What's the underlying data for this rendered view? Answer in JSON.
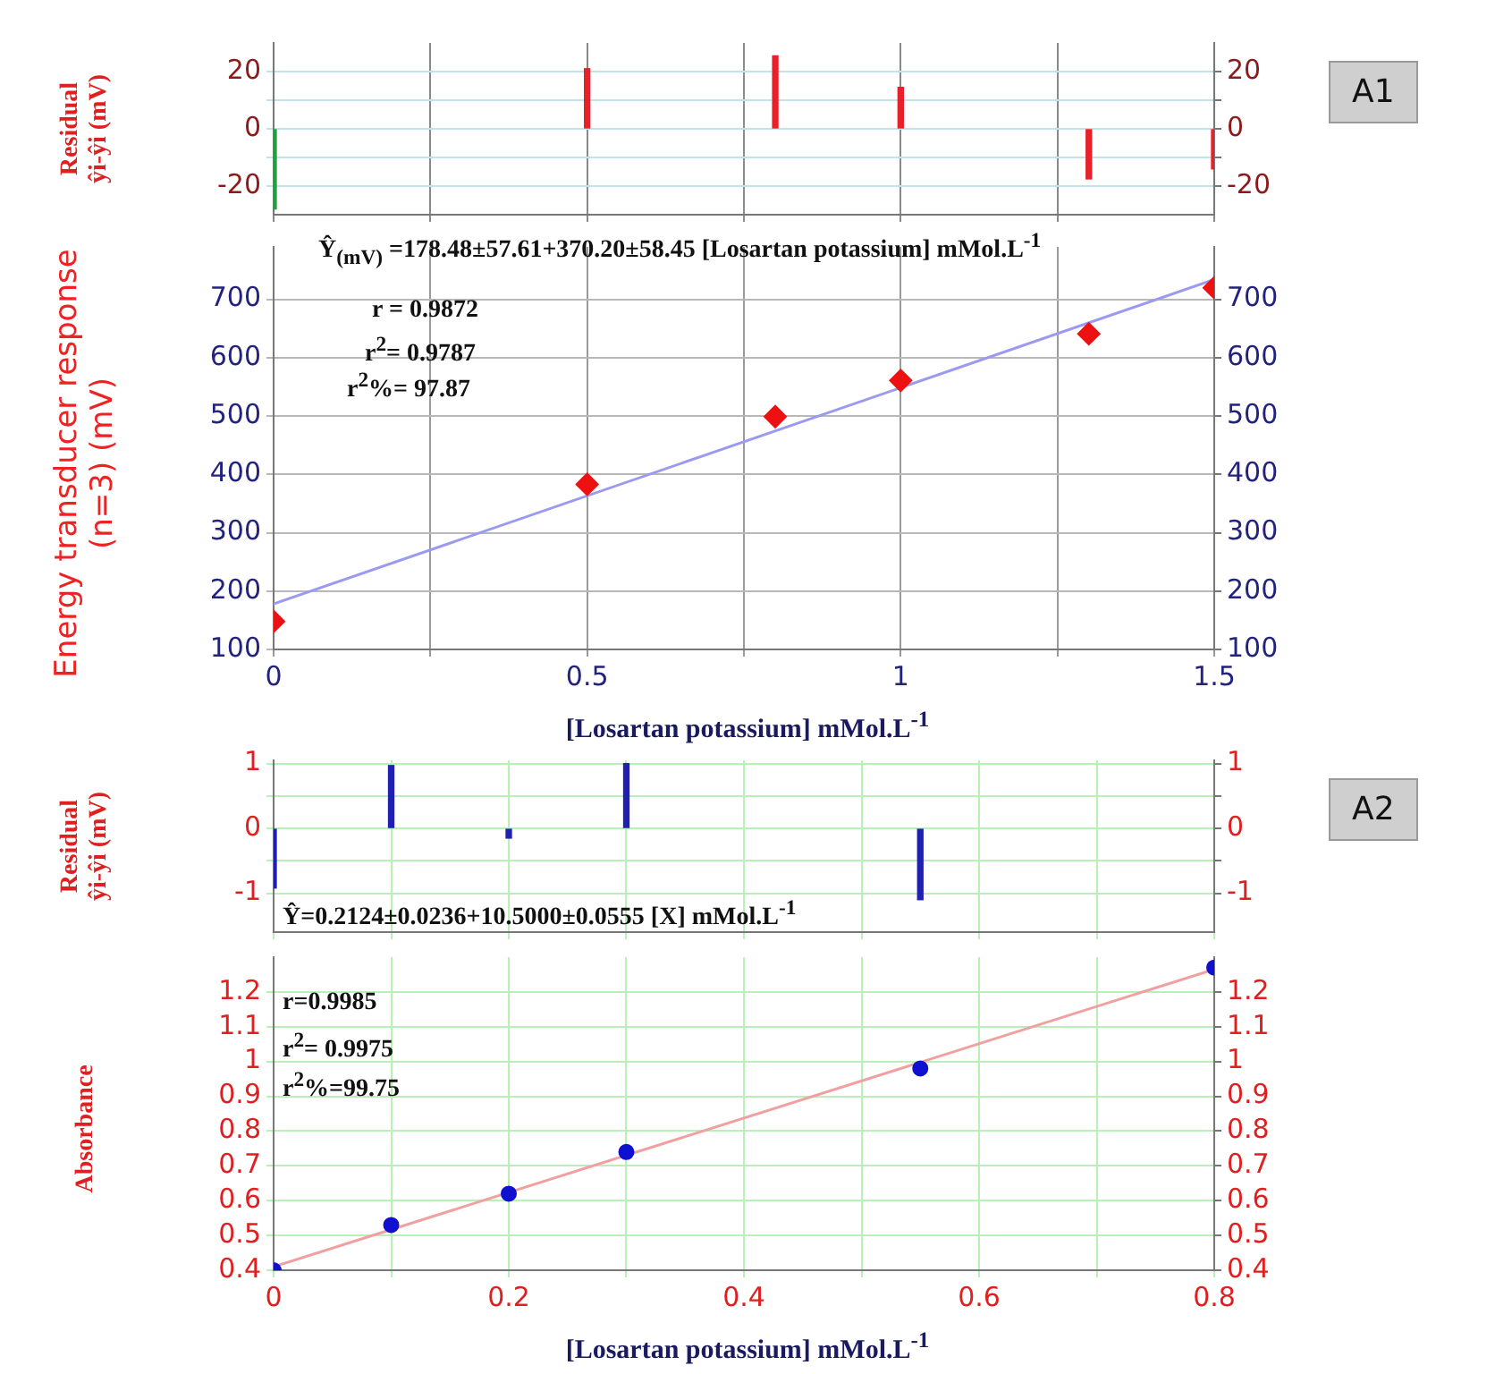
{
  "chart_data": [
    {
      "type": "bar",
      "ylabel": "Residual\nŷi-ŷi (mV)",
      "x": [
        0,
        0.5,
        0.8,
        1,
        1.3,
        1.5
      ],
      "values": [
        -28,
        21,
        25.5,
        14.5,
        -17.5,
        -14
      ],
      "colors": [
        "#22a040",
        "#e8202a",
        "#e8202a",
        "#e8202a",
        "#e8202a",
        "#e8202a"
      ],
      "xlim": [
        0,
        1.5
      ],
      "xticks": [
        0,
        0.25,
        0.5,
        0.75,
        1,
        1.25,
        1.5
      ],
      "ylim": [
        -30,
        30
      ],
      "yticks": [
        -20,
        {
          "value": -10,
          "label": null
        },
        0,
        {
          "value": 10,
          "label": null
        },
        20
      ],
      "y2lim": [
        -30,
        30
      ],
      "y2ticks": [
        -20,
        {
          "value": -10,
          "label": null
        },
        0,
        {
          "value": 10,
          "label": null
        },
        20
      ],
      "grid": true,
      "tick_labels": "y",
      "legend": false,
      "annotations": [
        "A1"
      ]
    },
    {
      "type": "scatter",
      "xlabel": "[Losartan potassium] mMol.L$^{-1}$",
      "ylabel": "Energy transducer response (n=3) (mV)",
      "series": [
        {
          "type": "scatter",
          "marker": "diamond",
          "color": "#ee1111",
          "x": [
            0,
            0.5,
            0.8,
            1,
            1.3,
            1.5
          ],
          "values": [
            148,
            383,
            499,
            561,
            641,
            720
          ]
        },
        {
          "type": "line",
          "color": "#9a9af0",
          "x": [
            0,
            1.5
          ],
          "values": [
            178,
            734
          ]
        }
      ],
      "xlim": [
        0,
        1.5
      ],
      "xticks": [
        0,
        {
          "value": 0.25,
          "label": null
        },
        0.5,
        {
          "value": 0.75,
          "label": null
        },
        1,
        {
          "value": 1.25,
          "label": null
        },
        1.5
      ],
      "ylim": [
        100,
        790
      ],
      "yticks": [
        100,
        200,
        300,
        400,
        500,
        600,
        700
      ],
      "y2lim": [
        100,
        790
      ],
      "y2ticks": [
        100,
        200,
        300,
        400,
        500,
        600,
        700
      ],
      "grid": true,
      "legend": false,
      "annotations": [
        "Ŷ$_{(mV)}$ =178.48±57.61+370.20±58.45 [Losartan potassium] mMol.L$^{-1}$",
        "r = 0.9872",
        "r$^{2}$= 0.9787",
        "r$^{2}$%= 97.87"
      ]
    },
    {
      "type": "bar",
      "ylabel": "Residual\nŷi-ŷi (mV)",
      "x": [
        0,
        0.1,
        0.2,
        0.3,
        0.55
      ],
      "values": [
        -0.92,
        0.97,
        -0.15,
        1,
        -1.1
      ],
      "colors": [
        "#2020b0",
        "#2020b0",
        "#2020b0",
        "#2020b0",
        "#2020b0"
      ],
      "xlim": [
        0,
        0.8
      ],
      "xticks": [
        0,
        0.1,
        0.2,
        0.3,
        0.4,
        0.5,
        0.6,
        0.7,
        0.8
      ],
      "ylim": [
        -1.6,
        1.05
      ],
      "yticks": [
        -1,
        {
          "value": -0.5,
          "label": null
        },
        0,
        {
          "value": 0.5,
          "label": null
        },
        1
      ],
      "y2lim": [
        -1.6,
        1.05
      ],
      "y2ticks": [
        -1,
        {
          "value": -0.5,
          "label": null
        },
        0,
        {
          "value": 0.5,
          "label": null
        },
        1
      ],
      "grid": true,
      "tick_labels": "y",
      "legend": false,
      "annotations": [
        "A2",
        "Ŷ=0.2124±0.0236+10.5000±0.0555    [X] mMol.L$^{-1}$"
      ]
    },
    {
      "type": "scatter",
      "xlabel": "[Losartan potassium] mMol.L$^{-1}$",
      "ylabel": "Absorbance",
      "series": [
        {
          "type": "scatter",
          "marker": "circle",
          "color": "#1010d0",
          "x": [
            0,
            0.1,
            0.2,
            0.3,
            0.55,
            0.8
          ],
          "values": [
            0.4,
            0.53,
            0.62,
            0.74,
            0.98,
            1.27
          ]
        },
        {
          "type": "line",
          "color": "#f0a0a0",
          "x": [
            0,
            0.8
          ],
          "values": [
            0.41,
            1.265
          ]
        }
      ],
      "xlim": [
        0,
        0.8
      ],
      "xticks": [
        0,
        {
          "value": 0.1,
          "label": null
        },
        0.2,
        {
          "value": 0.3,
          "label": null
        },
        0.4,
        {
          "value": 0.5,
          "label": null
        },
        0.6,
        {
          "value": 0.7,
          "label": null
        },
        0.8
      ],
      "ylim": [
        0.4,
        1.3
      ],
      "yticks": [
        0.4,
        0.5,
        0.6,
        0.7,
        0.8,
        0.9,
        1,
        1.1,
        1.2
      ],
      "y2lim": [
        0.4,
        1.3
      ],
      "y2ticks": [
        0.4,
        0.5,
        0.6,
        0.7,
        0.8,
        0.9,
        1,
        1.1,
        1.2
      ],
      "grid": true,
      "legend": false,
      "annotations": [
        "r=0.9985",
        "r$^{2}$= 0.9975",
        "r$^{2}$%=99.75"
      ]
    }
  ]
}
